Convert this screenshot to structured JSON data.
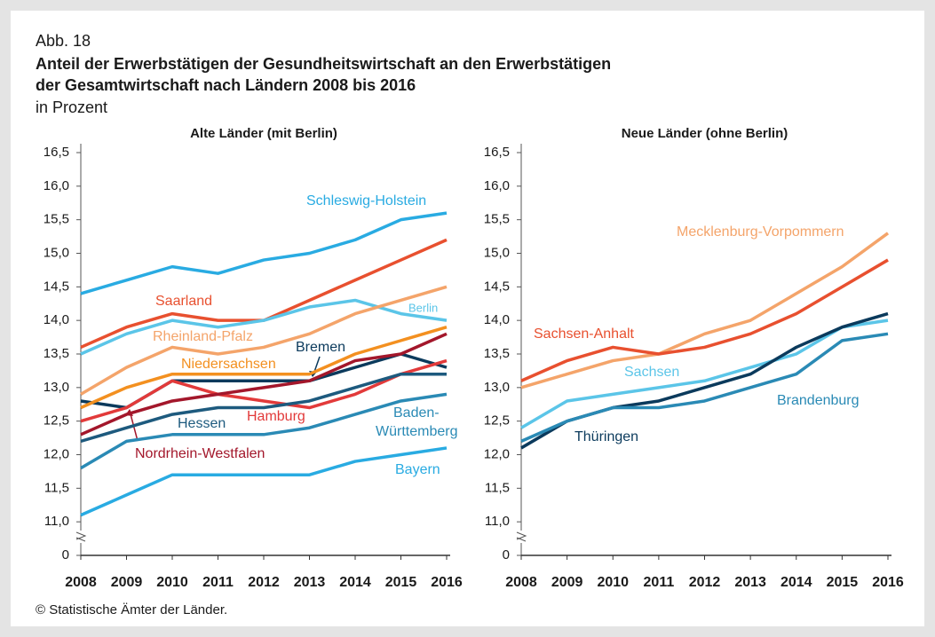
{
  "figure_label": "Abb. 18",
  "title": [
    "Anteil der Erwerbstätigen der Gesundheitswirtschaft an den Erwerbstätigen",
    "der Gesamtwirtschaft nach Ländern 2008 bis 2016"
  ],
  "subtitle": "in Prozent",
  "source": "© Statistische Ämter der Länder.",
  "chart_data": [
    {
      "type": "line",
      "title": "Alte Länder (mit Berlin)",
      "categories": [
        "2008",
        "2009",
        "2010",
        "2011",
        "2012",
        "2013",
        "2014",
        "2015",
        "2016"
      ],
      "ylim": [
        10.5,
        16.5
      ],
      "axis_break": true,
      "grid": false,
      "yticks": [
        0,
        {
          "value": 11.0,
          "label": "11,0"
        },
        {
          "value": 11.5,
          "label": "11,5"
        },
        {
          "value": 12.0,
          "label": "12,0"
        },
        {
          "value": 12.5,
          "label": "12,5"
        },
        {
          "value": 13.0,
          "label": "13,0"
        },
        {
          "value": 13.5,
          "label": "13,5"
        },
        {
          "value": 14.0,
          "label": "14,0"
        },
        {
          "value": 14.5,
          "label": "14,5"
        },
        {
          "value": 15.0,
          "label": "15,0"
        },
        {
          "value": 15.5,
          "label": "15,5"
        },
        {
          "value": 16.0,
          "label": "16,0"
        },
        {
          "value": 16.5,
          "label": "16,5"
        }
      ],
      "series": [
        {
          "name": "Schleswig-Holstein",
          "color": "#29abe2",
          "values": [
            14.4,
            14.6,
            14.8,
            14.7,
            14.9,
            15.0,
            15.2,
            15.5,
            15.6
          ]
        },
        {
          "name": "Saarland",
          "color": "#e8502f",
          "values": [
            13.6,
            13.9,
            14.1,
            14.0,
            14.0,
            14.3,
            14.6,
            14.9,
            15.2
          ]
        },
        {
          "name": "Berlin",
          "color": "#5bc5e8",
          "values": [
            13.5,
            13.8,
            14.0,
            13.9,
            14.0,
            14.2,
            14.3,
            14.1,
            14.0
          ]
        },
        {
          "name": "Rheinland-Pfalz",
          "color": "#f4a46a",
          "values": [
            12.9,
            13.3,
            13.6,
            13.5,
            13.6,
            13.8,
            14.1,
            14.3,
            14.5
          ]
        },
        {
          "name": "Bremen",
          "color": "#0b3a5c",
          "values": [
            12.8,
            12.7,
            13.1,
            13.1,
            13.1,
            13.1,
            13.3,
            13.5,
            13.3
          ]
        },
        {
          "name": "Niedersachsen",
          "color": "#f39020",
          "values": [
            12.7,
            13.0,
            13.2,
            13.2,
            13.2,
            13.2,
            13.5,
            13.7,
            13.9
          ]
        },
        {
          "name": "Hamburg",
          "color": "#e23a3a",
          "values": [
            12.5,
            12.7,
            13.1,
            12.9,
            12.8,
            12.7,
            12.9,
            13.2,
            13.4
          ]
        },
        {
          "name": "Hessen",
          "color": "#1d5a7e",
          "values": [
            12.2,
            12.4,
            12.6,
            12.7,
            12.7,
            12.8,
            13.0,
            13.2,
            13.2
          ]
        },
        {
          "name": "Baden-Württemberg",
          "color": "#2a8ab5",
          "values": [
            11.8,
            12.2,
            12.3,
            12.3,
            12.3,
            12.4,
            12.6,
            12.8,
            12.9
          ]
        },
        {
          "name": "Nordrhein-Westfalen",
          "color": "#a3172b",
          "values": [
            12.3,
            12.6,
            12.8,
            12.9,
            13.0,
            13.1,
            13.4,
            13.5,
            13.8
          ]
        },
        {
          "name": "Bayern",
          "color": "#29abe2",
          "values": [
            11.1,
            11.4,
            11.7,
            11.7,
            11.7,
            11.7,
            11.9,
            12.0,
            12.1
          ]
        }
      ]
    },
    {
      "type": "line",
      "title": "Neue Länder (ohne Berlin)",
      "categories": [
        "2008",
        "2009",
        "2010",
        "2011",
        "2012",
        "2013",
        "2014",
        "2015",
        "2016"
      ],
      "ylim": [
        10.5,
        16.5
      ],
      "axis_break": true,
      "grid": false,
      "yticks": [
        0,
        {
          "value": 11.0,
          "label": "11,0"
        },
        {
          "value": 11.5,
          "label": "11,5"
        },
        {
          "value": 12.0,
          "label": "12,0"
        },
        {
          "value": 12.5,
          "label": "12,5"
        },
        {
          "value": 13.0,
          "label": "13,0"
        },
        {
          "value": 13.5,
          "label": "13,5"
        },
        {
          "value": 14.0,
          "label": "14,0"
        },
        {
          "value": 14.5,
          "label": "14,5"
        },
        {
          "value": 15.0,
          "label": "15,0"
        },
        {
          "value": 15.5,
          "label": "15,5"
        },
        {
          "value": 16.0,
          "label": "16,0"
        },
        {
          "value": 16.5,
          "label": "16,5"
        }
      ],
      "series": [
        {
          "name": "Mecklenburg-Vorpommern",
          "color": "#f4a46a",
          "values": [
            13.0,
            13.2,
            13.4,
            13.5,
            13.8,
            14.0,
            14.4,
            14.8,
            15.3
          ]
        },
        {
          "name": "Sachsen-Anhalt",
          "color": "#e8502f",
          "values": [
            13.1,
            13.4,
            13.6,
            13.5,
            13.6,
            13.8,
            14.1,
            14.5,
            14.9
          ]
        },
        {
          "name": "Sachsen",
          "color": "#5bc5e8",
          "values": [
            12.4,
            12.8,
            12.9,
            13.0,
            13.1,
            13.3,
            13.5,
            13.9,
            14.0
          ]
        },
        {
          "name": "Thüringen",
          "color": "#0b3a5c",
          "values": [
            12.1,
            12.5,
            12.7,
            12.8,
            13.0,
            13.2,
            13.6,
            13.9,
            14.1
          ]
        },
        {
          "name": "Brandenburg",
          "color": "#2a8ab5",
          "values": [
            12.2,
            12.5,
            12.7,
            12.7,
            12.8,
            13.0,
            13.2,
            13.7,
            13.8
          ]
        }
      ]
    }
  ]
}
